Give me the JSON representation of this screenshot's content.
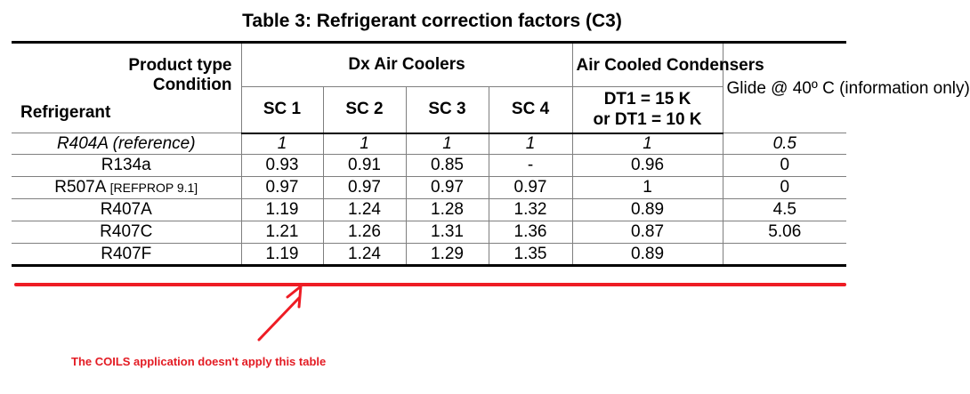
{
  "title": "Table 3: Refrigerant correction factors (C3)",
  "header": {
    "product_type": "Product type",
    "condition": "Condition",
    "refrigerant": "Refrigerant",
    "dx_air_coolers": "Dx Air Coolers",
    "air_cooled_condensers": "Air Cooled Condensers",
    "glide": "Glide @ 40º C (information only)",
    "sc1": "SC 1",
    "sc2": "SC 2",
    "sc3": "SC 3",
    "sc4": "SC 4",
    "dt1_a": "DT1 = 15 K",
    "dt1_b": "or DT1 = 10 K"
  },
  "rows": [
    {
      "name": "R404A (reference)",
      "note": "",
      "sc1": "1",
      "sc2": "1",
      "sc3": "1",
      "sc4": "1",
      "condenser": "1",
      "glide": "0.5"
    },
    {
      "name": "R134a",
      "note": "",
      "sc1": "0.93",
      "sc2": "0.91",
      "sc3": "0.85",
      "sc4": "-",
      "condenser": "0.96",
      "glide": "0"
    },
    {
      "name": "R507A",
      "note": "[REFPROP 9.1]",
      "sc1": "0.97",
      "sc2": "0.97",
      "sc3": "0.97",
      "sc4": "0.97",
      "condenser": "1",
      "glide": "0"
    },
    {
      "name": "R407A",
      "note": "",
      "sc1": "1.19",
      "sc2": "1.24",
      "sc3": "1.28",
      "sc4": "1.32",
      "condenser": "0.89",
      "glide": "4.5"
    },
    {
      "name": "R407C",
      "note": "",
      "sc1": "1.21",
      "sc2": "1.26",
      "sc3": "1.31",
      "sc4": "1.36",
      "condenser": "0.87",
      "glide": "5.06"
    },
    {
      "name": "R407F",
      "note": "",
      "sc1": "1.19",
      "sc2": "1.24",
      "sc3": "1.29",
      "sc4": "1.35",
      "condenser": "0.89",
      "glide": ""
    }
  ],
  "annotation": {
    "text": "The COILS application doesn't apply this table",
    "color": "#e31b23",
    "line_color": "#ee1c24"
  }
}
